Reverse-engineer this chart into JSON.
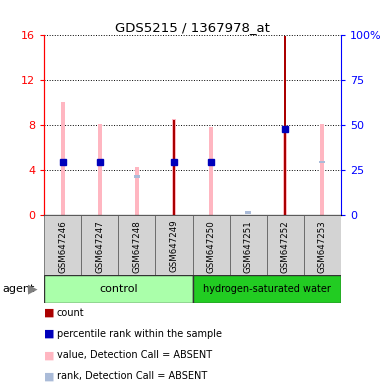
{
  "title": "GDS5215 / 1367978_at",
  "samples": [
    "GSM647246",
    "GSM647247",
    "GSM647248",
    "GSM647249",
    "GSM647250",
    "GSM647251",
    "GSM647252",
    "GSM647253"
  ],
  "ylim_left": [
    0,
    16
  ],
  "ylim_right": [
    0,
    100
  ],
  "yticks_left": [
    0,
    4,
    8,
    12,
    16
  ],
  "ytick_labels_left": [
    "0",
    "4",
    "8",
    "12",
    "16"
  ],
  "yticks_right": [
    0,
    25,
    50,
    75,
    100
  ],
  "ytick_labels_right": [
    "0",
    "25",
    "50",
    "75",
    "100%"
  ],
  "pink_bars": [
    10.0,
    8.1,
    4.3,
    8.5,
    7.8,
    0.0,
    7.6,
    8.1
  ],
  "light_blue_vals": [
    4.6,
    4.7,
    3.4,
    4.7,
    4.6,
    0.25,
    7.5,
    4.7
  ],
  "dark_red_bars": [
    0.0,
    0.0,
    0.0,
    8.4,
    0.0,
    0.0,
    15.9,
    0.0
  ],
  "dark_blue_vals": [
    4.7,
    4.7,
    0.0,
    4.7,
    4.7,
    0.0,
    7.6,
    0.0
  ],
  "has_dark_red": [
    false,
    false,
    false,
    true,
    false,
    false,
    true,
    false
  ],
  "has_dark_blue": [
    true,
    true,
    false,
    true,
    true,
    false,
    true,
    false
  ],
  "has_light_blue": [
    true,
    true,
    true,
    true,
    true,
    true,
    true,
    true
  ],
  "has_pink": [
    true,
    true,
    true,
    true,
    true,
    false,
    true,
    true
  ],
  "pink_color": "#FFB6C1",
  "light_blue_color": "#AABBD8",
  "dark_red_color": "#AA0000",
  "dark_blue_color": "#0000BB",
  "ctrl_color_light": "#AAFFAA",
  "ctrl_color_dark": "#22CC22",
  "legend_items": [
    {
      "color": "#AA0000",
      "label": "count"
    },
    {
      "color": "#0000BB",
      "label": "percentile rank within the sample"
    },
    {
      "color": "#FFB6C1",
      "label": "value, Detection Call = ABSENT"
    },
    {
      "color": "#AABBD8",
      "label": "rank, Detection Call = ABSENT"
    }
  ],
  "bar_width": 0.12,
  "bg_color": "#D3D3D3"
}
